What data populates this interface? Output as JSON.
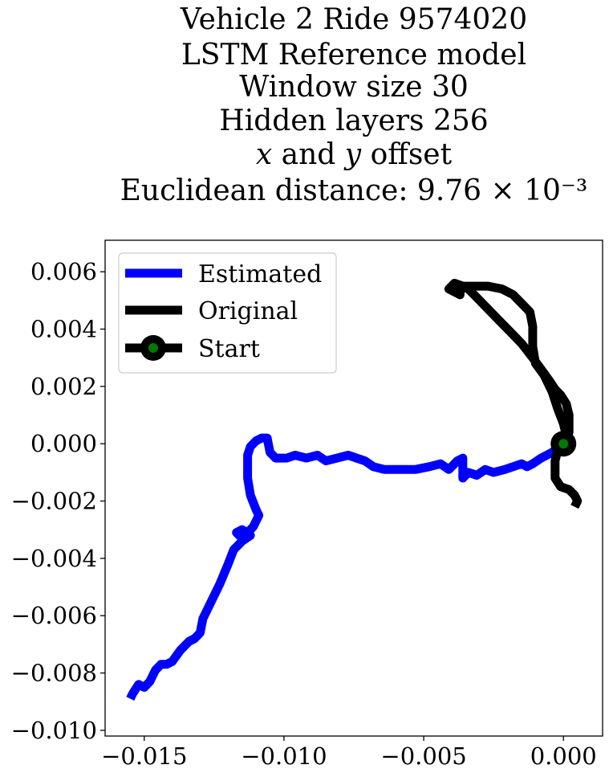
{
  "chart_data": {
    "type": "line",
    "title_lines": [
      "Vehicle 2 Ride 9574020",
      "LSTM Reference model",
      "Window size 30",
      "Hidden layers 256",
      "𝑥 and 𝑦 offset",
      "Euclidean distance: 9.76 × 10⁻³"
    ],
    "xlabel": "",
    "ylabel": "",
    "xlim": [
      -0.0164,
      0.0014
    ],
    "ylim": [
      -0.0102,
      0.0071
    ],
    "xticks": [
      -0.015,
      -0.01,
      -0.005,
      0.0
    ],
    "xtick_labels": [
      "−0.015",
      "−0.010",
      "−0.005",
      "0.000"
    ],
    "yticks": [
      0.006,
      0.004,
      0.002,
      0.0,
      -0.002,
      -0.004,
      -0.006,
      -0.008,
      -0.01
    ],
    "ytick_labels": [
      "0.006",
      "0.004",
      "0.002",
      "0.000",
      "−0.002",
      "−0.004",
      "−0.006",
      "−0.008",
      "−0.010"
    ],
    "grid": false,
    "legend_position": "top-left",
    "series": [
      {
        "name": "Estimated",
        "color": "#0000ff",
        "points": [
          [
            0.0,
            0.0
          ],
          [
            -0.0004,
            -0.0003
          ],
          [
            -0.0008,
            -0.0005
          ],
          [
            -0.0011,
            -0.0007
          ],
          [
            -0.0013,
            -0.0008
          ],
          [
            -0.0015,
            -0.0007
          ],
          [
            -0.0018,
            -0.0008
          ],
          [
            -0.0021,
            -0.0009
          ],
          [
            -0.0025,
            -0.001
          ],
          [
            -0.0028,
            -0.0009
          ],
          [
            -0.0031,
            -0.0011
          ],
          [
            -0.0034,
            -0.001
          ],
          [
            -0.0036,
            -0.0012
          ],
          [
            -0.0036,
            -0.0005
          ],
          [
            -0.0038,
            -0.0006
          ],
          [
            -0.0041,
            -0.0009
          ],
          [
            -0.0044,
            -0.0007
          ],
          [
            -0.0048,
            -0.0008
          ],
          [
            -0.0053,
            -0.0009
          ],
          [
            -0.0058,
            -0.0009
          ],
          [
            -0.0064,
            -0.0009
          ],
          [
            -0.0068,
            -0.0008
          ],
          [
            -0.0071,
            -0.0006
          ],
          [
            -0.0074,
            -0.0005
          ],
          [
            -0.0077,
            -0.0004
          ],
          [
            -0.0081,
            -0.0005
          ],
          [
            -0.0085,
            -0.0006
          ],
          [
            -0.0088,
            -0.0004
          ],
          [
            -0.0092,
            -0.0005
          ],
          [
            -0.0096,
            -0.0004
          ],
          [
            -0.0099,
            -0.0005
          ],
          [
            -0.0103,
            -0.0005
          ],
          [
            -0.0105,
            -0.0003
          ],
          [
            -0.0106,
            0.0002
          ],
          [
            -0.0108,
            0.0002
          ],
          [
            -0.011,
            0.0001
          ],
          [
            -0.0112,
            -0.0001
          ],
          [
            -0.0113,
            -0.0004
          ],
          [
            -0.0113,
            -0.0012
          ],
          [
            -0.0112,
            -0.0018
          ],
          [
            -0.011,
            -0.0023
          ],
          [
            -0.0109,
            -0.0025
          ],
          [
            -0.011,
            -0.0027
          ],
          [
            -0.0111,
            -0.0029
          ],
          [
            -0.0112,
            -0.003
          ],
          [
            -0.0113,
            -0.0031
          ],
          [
            -0.0114,
            -0.0033
          ],
          [
            -0.0116,
            -0.0032
          ],
          [
            -0.0117,
            -0.0031
          ],
          [
            -0.0115,
            -0.003
          ],
          [
            -0.0113,
            -0.0031
          ],
          [
            -0.0112,
            -0.0032
          ],
          [
            -0.0115,
            -0.0034
          ],
          [
            -0.0118,
            -0.0037
          ],
          [
            -0.012,
            -0.0042
          ],
          [
            -0.0123,
            -0.0049
          ],
          [
            -0.0127,
            -0.0057
          ],
          [
            -0.0129,
            -0.0061
          ],
          [
            -0.013,
            -0.0066
          ],
          [
            -0.0132,
            -0.0068
          ],
          [
            -0.0134,
            -0.0069
          ],
          [
            -0.0137,
            -0.0072
          ],
          [
            -0.014,
            -0.0076
          ],
          [
            -0.0142,
            -0.0077
          ],
          [
            -0.0144,
            -0.0077
          ],
          [
            -0.0146,
            -0.0079
          ],
          [
            -0.0148,
            -0.0083
          ],
          [
            -0.015,
            -0.0085
          ],
          [
            -0.0152,
            -0.0084
          ],
          [
            -0.0154,
            -0.0087
          ],
          [
            -0.0155,
            -0.0089
          ]
        ]
      },
      {
        "name": "Original",
        "color": "#000000",
        "points": [
          [
            0.0,
            0.0
          ],
          [
            0.0002,
            0.0004
          ],
          [
            0.0002,
            0.001
          ],
          [
            0.0001,
            0.0014
          ],
          [
            -0.0001,
            0.0017
          ],
          [
            -0.0003,
            0.0019
          ],
          [
            -0.0005,
            0.0022
          ],
          [
            -0.0008,
            0.0026
          ],
          [
            -0.0011,
            0.003
          ],
          [
            -0.0015,
            0.0035
          ],
          [
            -0.0019,
            0.0039
          ],
          [
            -0.0023,
            0.0043
          ],
          [
            -0.0027,
            0.0047
          ],
          [
            -0.0031,
            0.0051
          ],
          [
            -0.0034,
            0.0054
          ],
          [
            -0.0037,
            0.0055
          ],
          [
            -0.0039,
            0.0056
          ],
          [
            -0.004,
            0.0055
          ],
          [
            -0.0039,
            0.0053
          ],
          [
            -0.0037,
            0.0052
          ],
          [
            -0.0037,
            0.0054
          ],
          [
            -0.0039,
            0.0053
          ],
          [
            -0.0041,
            0.0054
          ],
          [
            -0.0039,
            0.0056
          ],
          [
            -0.0036,
            0.0055
          ],
          [
            -0.0032,
            0.0055
          ],
          [
            -0.0027,
            0.0055
          ],
          [
            -0.0022,
            0.0054
          ],
          [
            -0.0018,
            0.0052
          ],
          [
            -0.0015,
            0.0049
          ],
          [
            -0.0012,
            0.0046
          ],
          [
            -0.0011,
            0.0041
          ],
          [
            -0.0011,
            0.0034
          ],
          [
            -0.001,
            0.0028
          ],
          [
            -0.0007,
            0.0024
          ],
          [
            -0.0004,
            0.0018
          ],
          [
            -0.0002,
            0.0012
          ],
          [
            0.0,
            0.0007
          ],
          [
            0.0001,
            0.0003
          ],
          [
            0.0,
            0.0
          ],
          [
            -0.0002,
            -0.0002
          ],
          [
            -0.0003,
            -0.0006
          ],
          [
            -0.0003,
            -0.0012
          ],
          [
            -0.0001,
            -0.0015
          ],
          [
            0.0002,
            -0.0016
          ],
          [
            0.0004,
            -0.0018
          ],
          [
            0.0005,
            -0.002
          ],
          [
            0.0004,
            -0.0022
          ]
        ]
      }
    ],
    "start": {
      "name": "Start",
      "x": 0.0,
      "y": 0.0,
      "marker_edge_color": "#000000",
      "marker_face_color": "#007a00"
    },
    "legend": [
      {
        "label": "Estimated",
        "color": "#0000ff",
        "kind": "line"
      },
      {
        "label": "Original",
        "color": "#000000",
        "kind": "line"
      },
      {
        "label": "Start",
        "color": "#000000",
        "kind": "line-marker",
        "marker_face_color": "#007a00"
      }
    ]
  }
}
